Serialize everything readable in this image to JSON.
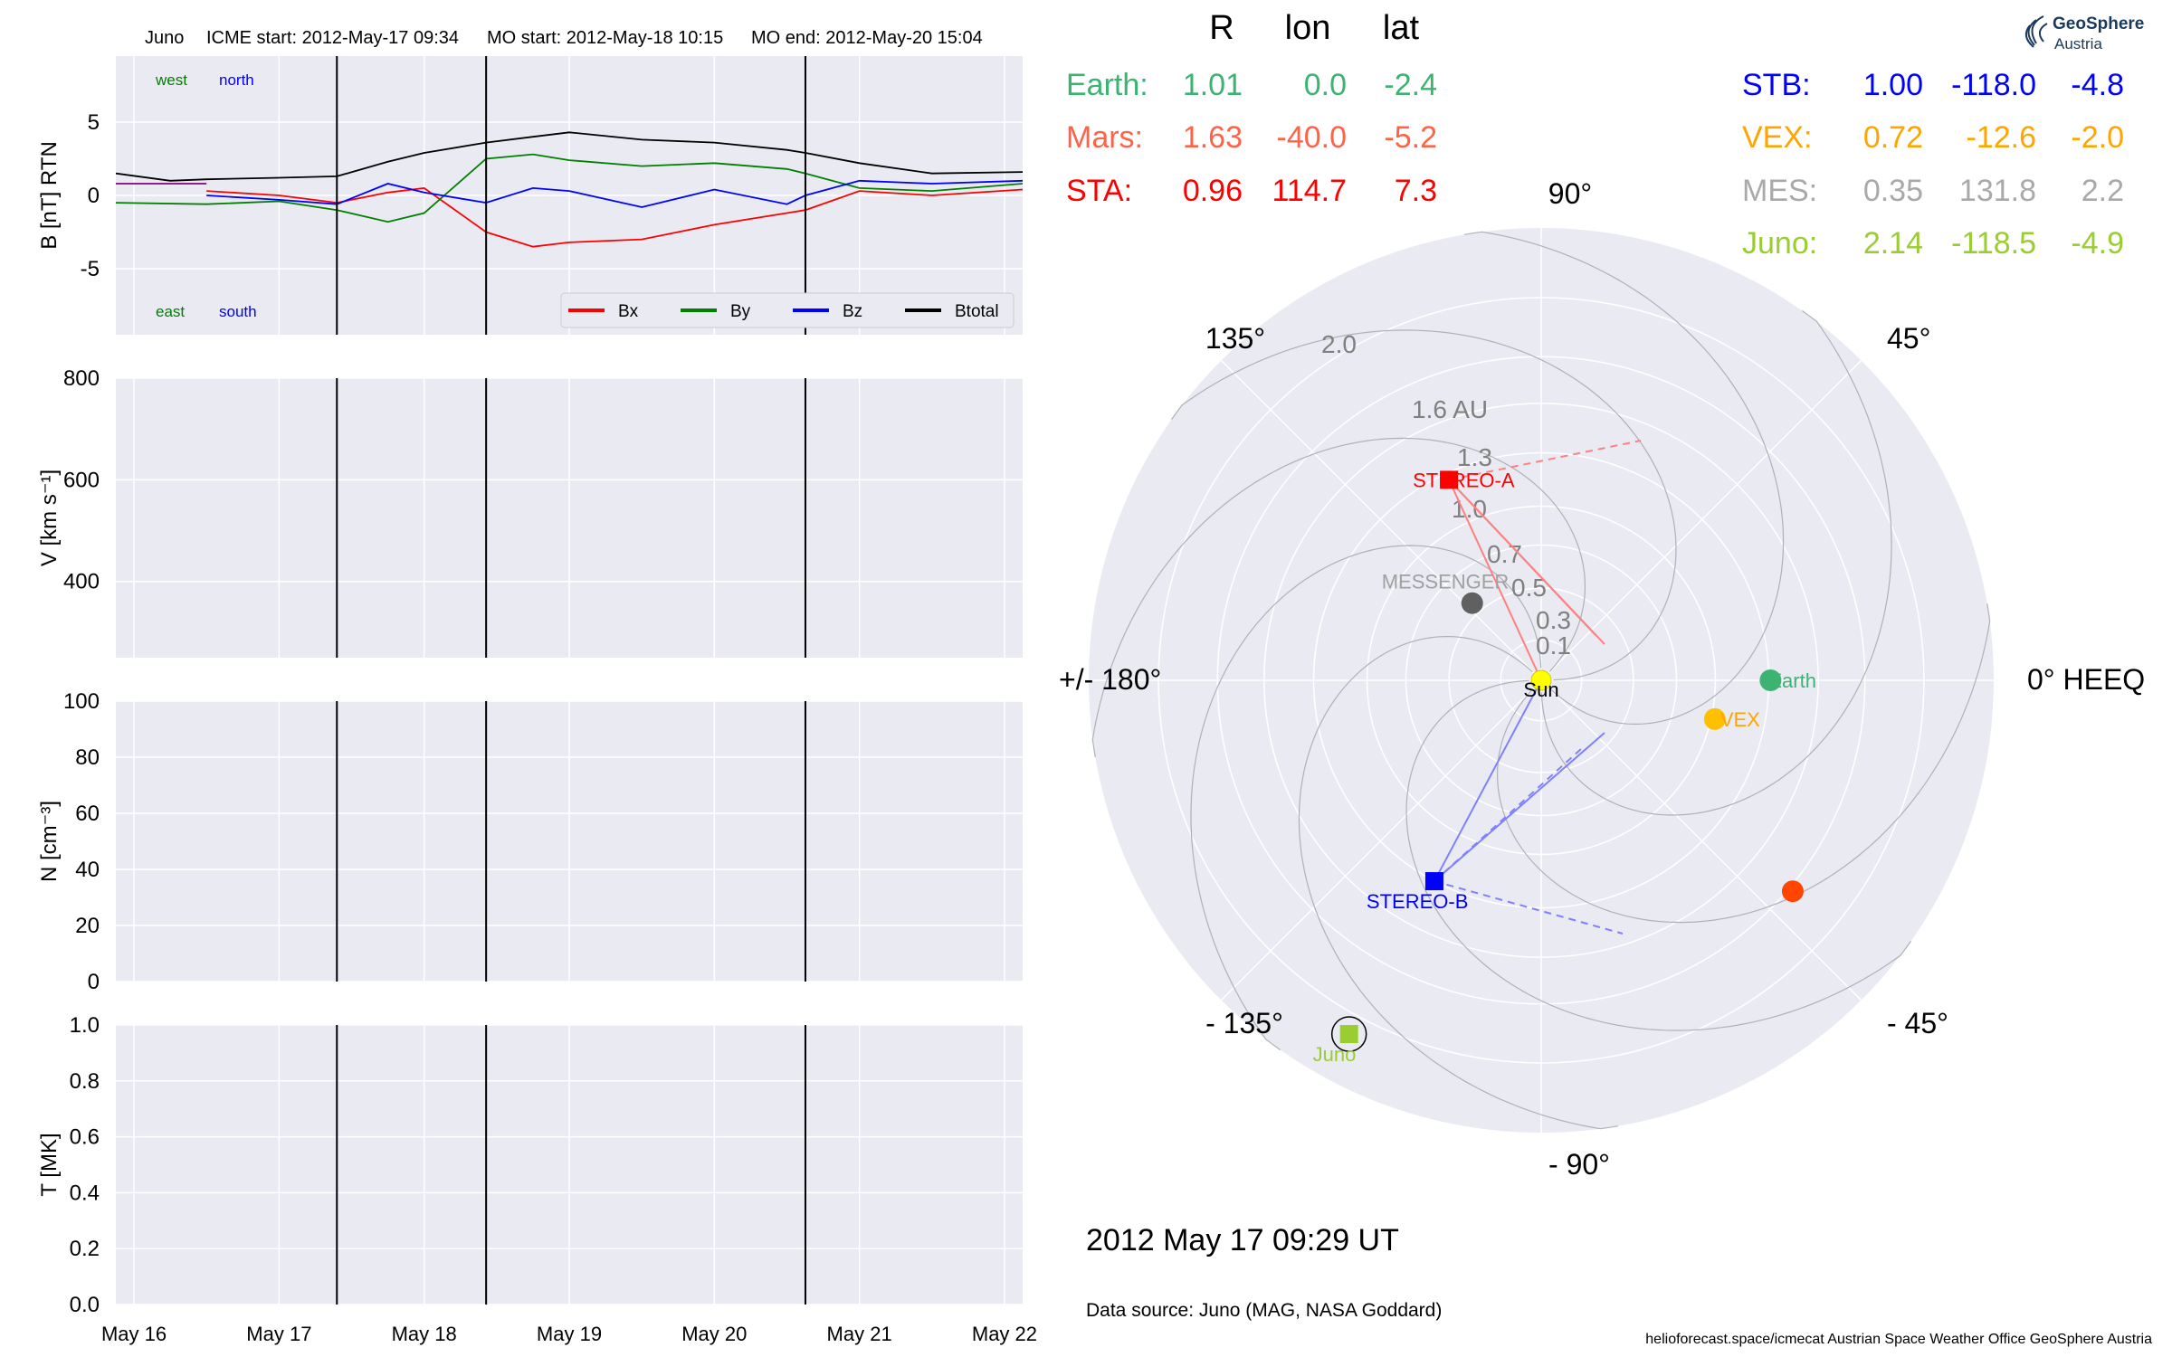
{
  "header": {
    "spacecraft": "Juno",
    "icme_start": "ICME start: 2012-May-17 09:34",
    "mo_start": "MO start: 2012-May-18 10:15",
    "mo_end": "MO end: 2012-May-20 15:04"
  },
  "logo": {
    "line1": "GeoSphere",
    "line2": "Austria"
  },
  "position_table": {
    "headers": [
      "R",
      "lon",
      "lat"
    ],
    "left": [
      {
        "name": "Earth:",
        "r": "1.01",
        "lon": "0.0",
        "lat": "-2.4",
        "color": "#3cb371"
      },
      {
        "name": "Mars:",
        "r": "1.63",
        "lon": "-40.0",
        "lat": "-5.2",
        "color": "#ff6347"
      },
      {
        "name": "STA:",
        "r": "0.96",
        "lon": "114.7",
        "lat": "7.3",
        "color": "#ff0000"
      }
    ],
    "right": [
      {
        "name": "STB:",
        "r": "1.00",
        "lon": "-118.0",
        "lat": "-4.8",
        "color": "#0000ff"
      },
      {
        "name": "VEX:",
        "r": "0.72",
        "lon": "-12.6",
        "lat": "-2.0",
        "color": "#ffa500"
      },
      {
        "name": "MES:",
        "r": "0.35",
        "lon": "131.8",
        "lat": "2.2",
        "color": "#a9a9a9"
      },
      {
        "name": "Juno:",
        "r": "2.14",
        "lon": "-118.5",
        "lat": "-4.9",
        "color": "#9acd32"
      }
    ]
  },
  "timestamp": "2012 May 17  09:29 UT",
  "data_source": "Data source: Juno (MAG, NASA Goddard)",
  "footer": "helioforecast.space/icmecat   Austrian Space Weather Office   GeoSphere Austria",
  "chart_data": [
    {
      "type": "line",
      "panel": "magnetic field",
      "ylabel": "B [nT] RTN",
      "xlim": [
        "2012-05-15T21:00",
        "2012-05-22T03:00"
      ],
      "ylim": [
        -9.5,
        9.5
      ],
      "yticks": [
        -5,
        0,
        5
      ],
      "grid": true,
      "annotations": [
        {
          "text": "west",
          "color": "#008000"
        },
        {
          "text": "north",
          "color": "#0000ff"
        },
        {
          "text": "east",
          "color": "#008000"
        },
        {
          "text": "south",
          "color": "#0000ff"
        }
      ],
      "legend": {
        "placement": "lower-right",
        "entries": [
          "Bx",
          "By",
          "Bz",
          "Btotal"
        ]
      },
      "series": [
        {
          "name": "Btotal",
          "color": "#000000",
          "x": [
            "2012-05-15T21:00",
            "2012-05-16T06:00",
            "2012-05-16T12:00",
            "2012-05-17T00:00",
            "2012-05-17T09:34",
            "2012-05-17T18:00",
            "2012-05-18T00:00",
            "2012-05-18T10:15",
            "2012-05-18T18:00",
            "2012-05-19T00:00",
            "2012-05-19T12:00",
            "2012-05-20T00:00",
            "2012-05-20T12:00",
            "2012-05-20T15:04",
            "2012-05-21T00:00",
            "2012-05-21T12:00",
            "2012-05-22T03:00"
          ],
          "y": [
            1.5,
            1.0,
            1.1,
            1.2,
            1.3,
            2.3,
            2.9,
            3.6,
            4.0,
            4.3,
            3.8,
            3.6,
            3.1,
            2.9,
            2.2,
            1.5,
            1.6
          ]
        },
        {
          "name": "Bx",
          "color": "#ff0000",
          "x": [
            "2012-05-16T12:00",
            "2012-05-17T00:00",
            "2012-05-17T09:34",
            "2012-05-17T18:00",
            "2012-05-18T00:00",
            "2012-05-18T10:15",
            "2012-05-18T18:00",
            "2012-05-19T00:00",
            "2012-05-19T12:00",
            "2012-05-20T00:00",
            "2012-05-20T12:00",
            "2012-05-20T15:04",
            "2012-05-21T00:00",
            "2012-05-21T12:00",
            "2012-05-22T03:00"
          ],
          "y": [
            0.3,
            0.0,
            -0.5,
            0.2,
            0.5,
            -2.5,
            -3.5,
            -3.2,
            -3.0,
            -2.0,
            -1.2,
            -1.0,
            0.3,
            0.0,
            0.4
          ]
        },
        {
          "name": "By",
          "color": "#008000",
          "x": [
            "2012-05-15T21:00",
            "2012-05-16T12:00",
            "2012-05-17T00:00",
            "2012-05-17T09:34",
            "2012-05-17T18:00",
            "2012-05-18T00:00",
            "2012-05-18T10:15",
            "2012-05-18T18:00",
            "2012-05-19T00:00",
            "2012-05-19T12:00",
            "2012-05-20T00:00",
            "2012-05-20T12:00",
            "2012-05-20T15:04",
            "2012-05-21T00:00",
            "2012-05-21T12:00",
            "2012-05-22T03:00"
          ],
          "y": [
            -0.5,
            -0.6,
            -0.4,
            -1.0,
            -1.8,
            -1.2,
            2.5,
            2.8,
            2.4,
            2.0,
            2.2,
            1.8,
            1.5,
            0.5,
            0.3,
            0.8
          ]
        },
        {
          "name": "Bz",
          "color": "#0000ff",
          "x": [
            "2012-05-16T12:00",
            "2012-05-17T00:00",
            "2012-05-17T09:34",
            "2012-05-17T18:00",
            "2012-05-18T00:00",
            "2012-05-18T10:15",
            "2012-05-18T18:00",
            "2012-05-19T00:00",
            "2012-05-19T12:00",
            "2012-05-20T00:00",
            "2012-05-20T12:00",
            "2012-05-20T15:04",
            "2012-05-21T00:00",
            "2012-05-21T12:00",
            "2012-05-22T03:00"
          ],
          "y": [
            0.0,
            -0.3,
            -0.6,
            0.8,
            0.2,
            -0.5,
            0.5,
            0.3,
            -0.8,
            0.4,
            -0.6,
            0.0,
            1.0,
            0.8,
            1.0
          ]
        },
        {
          "name": "",
          "color": "#800080",
          "x": [
            "2012-05-15T21:00",
            "2012-05-16T12:00"
          ],
          "y": [
            0.8,
            0.8
          ]
        }
      ],
      "event_lines": [
        "2012-05-17T09:34",
        "2012-05-18T10:15",
        "2012-05-20T15:04"
      ]
    },
    {
      "type": "line",
      "panel": "speed",
      "ylabel": "V [km s⁻¹]",
      "xlim": [
        "2012-05-15T21:00",
        "2012-05-22T03:00"
      ],
      "ylim": [
        250,
        800
      ],
      "yticks": [
        400,
        600,
        800
      ],
      "grid": true,
      "series": [],
      "event_lines": [
        "2012-05-17T09:34",
        "2012-05-18T10:15",
        "2012-05-20T15:04"
      ]
    },
    {
      "type": "line",
      "panel": "density",
      "ylabel": "N [cm⁻³]",
      "xlim": [
        "2012-05-15T21:00",
        "2012-05-22T03:00"
      ],
      "ylim": [
        0,
        100
      ],
      "yticks": [
        0,
        20,
        40,
        60,
        80,
        100
      ],
      "grid": true,
      "series": [],
      "event_lines": [
        "2012-05-17T09:34",
        "2012-05-18T10:15",
        "2012-05-20T15:04"
      ]
    },
    {
      "type": "line",
      "panel": "temperature",
      "ylabel": "T [MK]",
      "xlim": [
        "2012-05-15T21:00",
        "2012-05-22T03:00"
      ],
      "ylim": [
        0,
        1
      ],
      "yticks": [
        "0.0",
        "0.2",
        "0.4",
        "0.6",
        "0.8",
        "1.0"
      ],
      "xticks": [
        "May 16",
        "May 17",
        "May 18",
        "May 19",
        "May 20",
        "May 21",
        "May 22"
      ],
      "grid": true,
      "series": [],
      "event_lines": [
        "2012-05-17T09:34",
        "2012-05-18T10:15",
        "2012-05-20T15:04"
      ]
    },
    {
      "type": "scatter",
      "panel": "polar HEEQ",
      "angle_labels": [
        {
          "deg": 0,
          "text": "0° HEEQ"
        },
        {
          "deg": 45,
          "text": "45°"
        },
        {
          "deg": 90,
          "text": "90°"
        },
        {
          "deg": 135,
          "text": "135°"
        },
        {
          "deg": 180,
          "text": "+/- 180°"
        },
        {
          "deg": -135,
          "text": "- 135°"
        },
        {
          "deg": -90,
          "text": "- 90°"
        },
        {
          "deg": -45,
          "text": "- 45°"
        }
      ],
      "radial_labels": [
        "0.1",
        "0.3",
        "0.5",
        "0.7",
        "1.0",
        "1.3",
        "1.6 AU",
        "2.0"
      ],
      "rings": [
        0.1,
        0.3,
        0.5,
        0.7,
        1.0,
        1.3,
        1.6,
        2.0
      ],
      "rmax": 2.5,
      "bodies": [
        {
          "name": "Sun",
          "r": 0.0,
          "lon": 0,
          "color": "#ffff00",
          "label_color": "#000000",
          "marker": "circle"
        },
        {
          "name": "Earth",
          "r": 1.01,
          "lon": 0.0,
          "color": "#3cb371",
          "label_color": "#3cb371",
          "marker": "circle"
        },
        {
          "name": "",
          "r": 1.63,
          "lon": -40.0,
          "color": "#ff4500",
          "label_color": "#ff4500",
          "marker": "circle"
        },
        {
          "name": "VEX",
          "r": 0.72,
          "lon": -12.6,
          "color": "#ffc000",
          "label_color": "#ffa500",
          "marker": "circle"
        },
        {
          "name": "MESSENGER",
          "r": 0.35,
          "lon": 131.8,
          "color": "#606060",
          "label_color": "#a0a0a0",
          "marker": "circle"
        },
        {
          "name": "STEREO-A",
          "r": 0.96,
          "lon": 114.7,
          "color": "#ff0000",
          "label_color": "#ff0000",
          "marker": "square"
        },
        {
          "name": "STEREO-B",
          "r": 1.0,
          "lon": -118.0,
          "color": "#0000ff",
          "label_color": "#0000ff",
          "marker": "square"
        },
        {
          "name": "Juno",
          "r": 2.14,
          "lon": -118.5,
          "color": "#9acd32",
          "label_color": "#9acd32",
          "marker": "square"
        }
      ]
    }
  ]
}
